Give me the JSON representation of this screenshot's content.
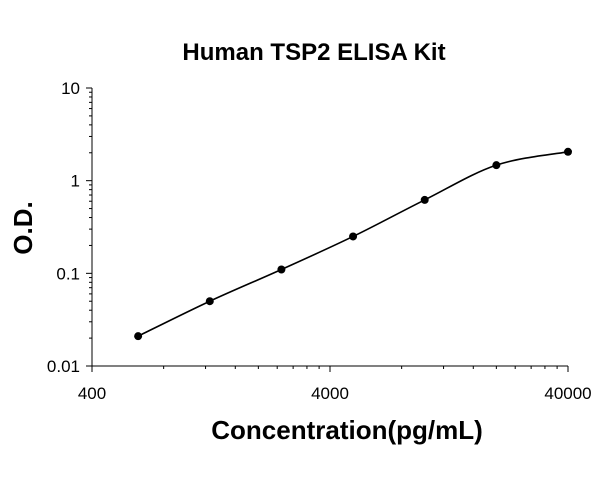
{
  "chart_data": {
    "type": "scatter",
    "title": "Human TSP2 ELISA Kit",
    "xlabel": "Concentration(pg/mL)",
    "ylabel": "O.D.",
    "x_scale": "log",
    "y_scale": "log",
    "xlim": [
      400,
      40000
    ],
    "ylim": [
      0.01,
      10
    ],
    "x_tick_labels": [
      "400",
      "4000",
      "40000"
    ],
    "y_tick_labels": [
      "10",
      "1",
      "0.1",
      "0.01"
    ],
    "x_ticks": [
      400,
      4000,
      40000
    ],
    "y_ticks": [
      10,
      1,
      0.1,
      0.01
    ],
    "grid": false,
    "series": [
      {
        "x": [
          625,
          1250,
          2500,
          5000,
          10000,
          20000,
          40000
        ],
        "y": [
          0.021,
          0.05,
          0.11,
          0.25,
          0.62,
          1.47,
          2.05
        ],
        "marker": "circle",
        "color": "#000000",
        "fit_line": true
      }
    ]
  }
}
